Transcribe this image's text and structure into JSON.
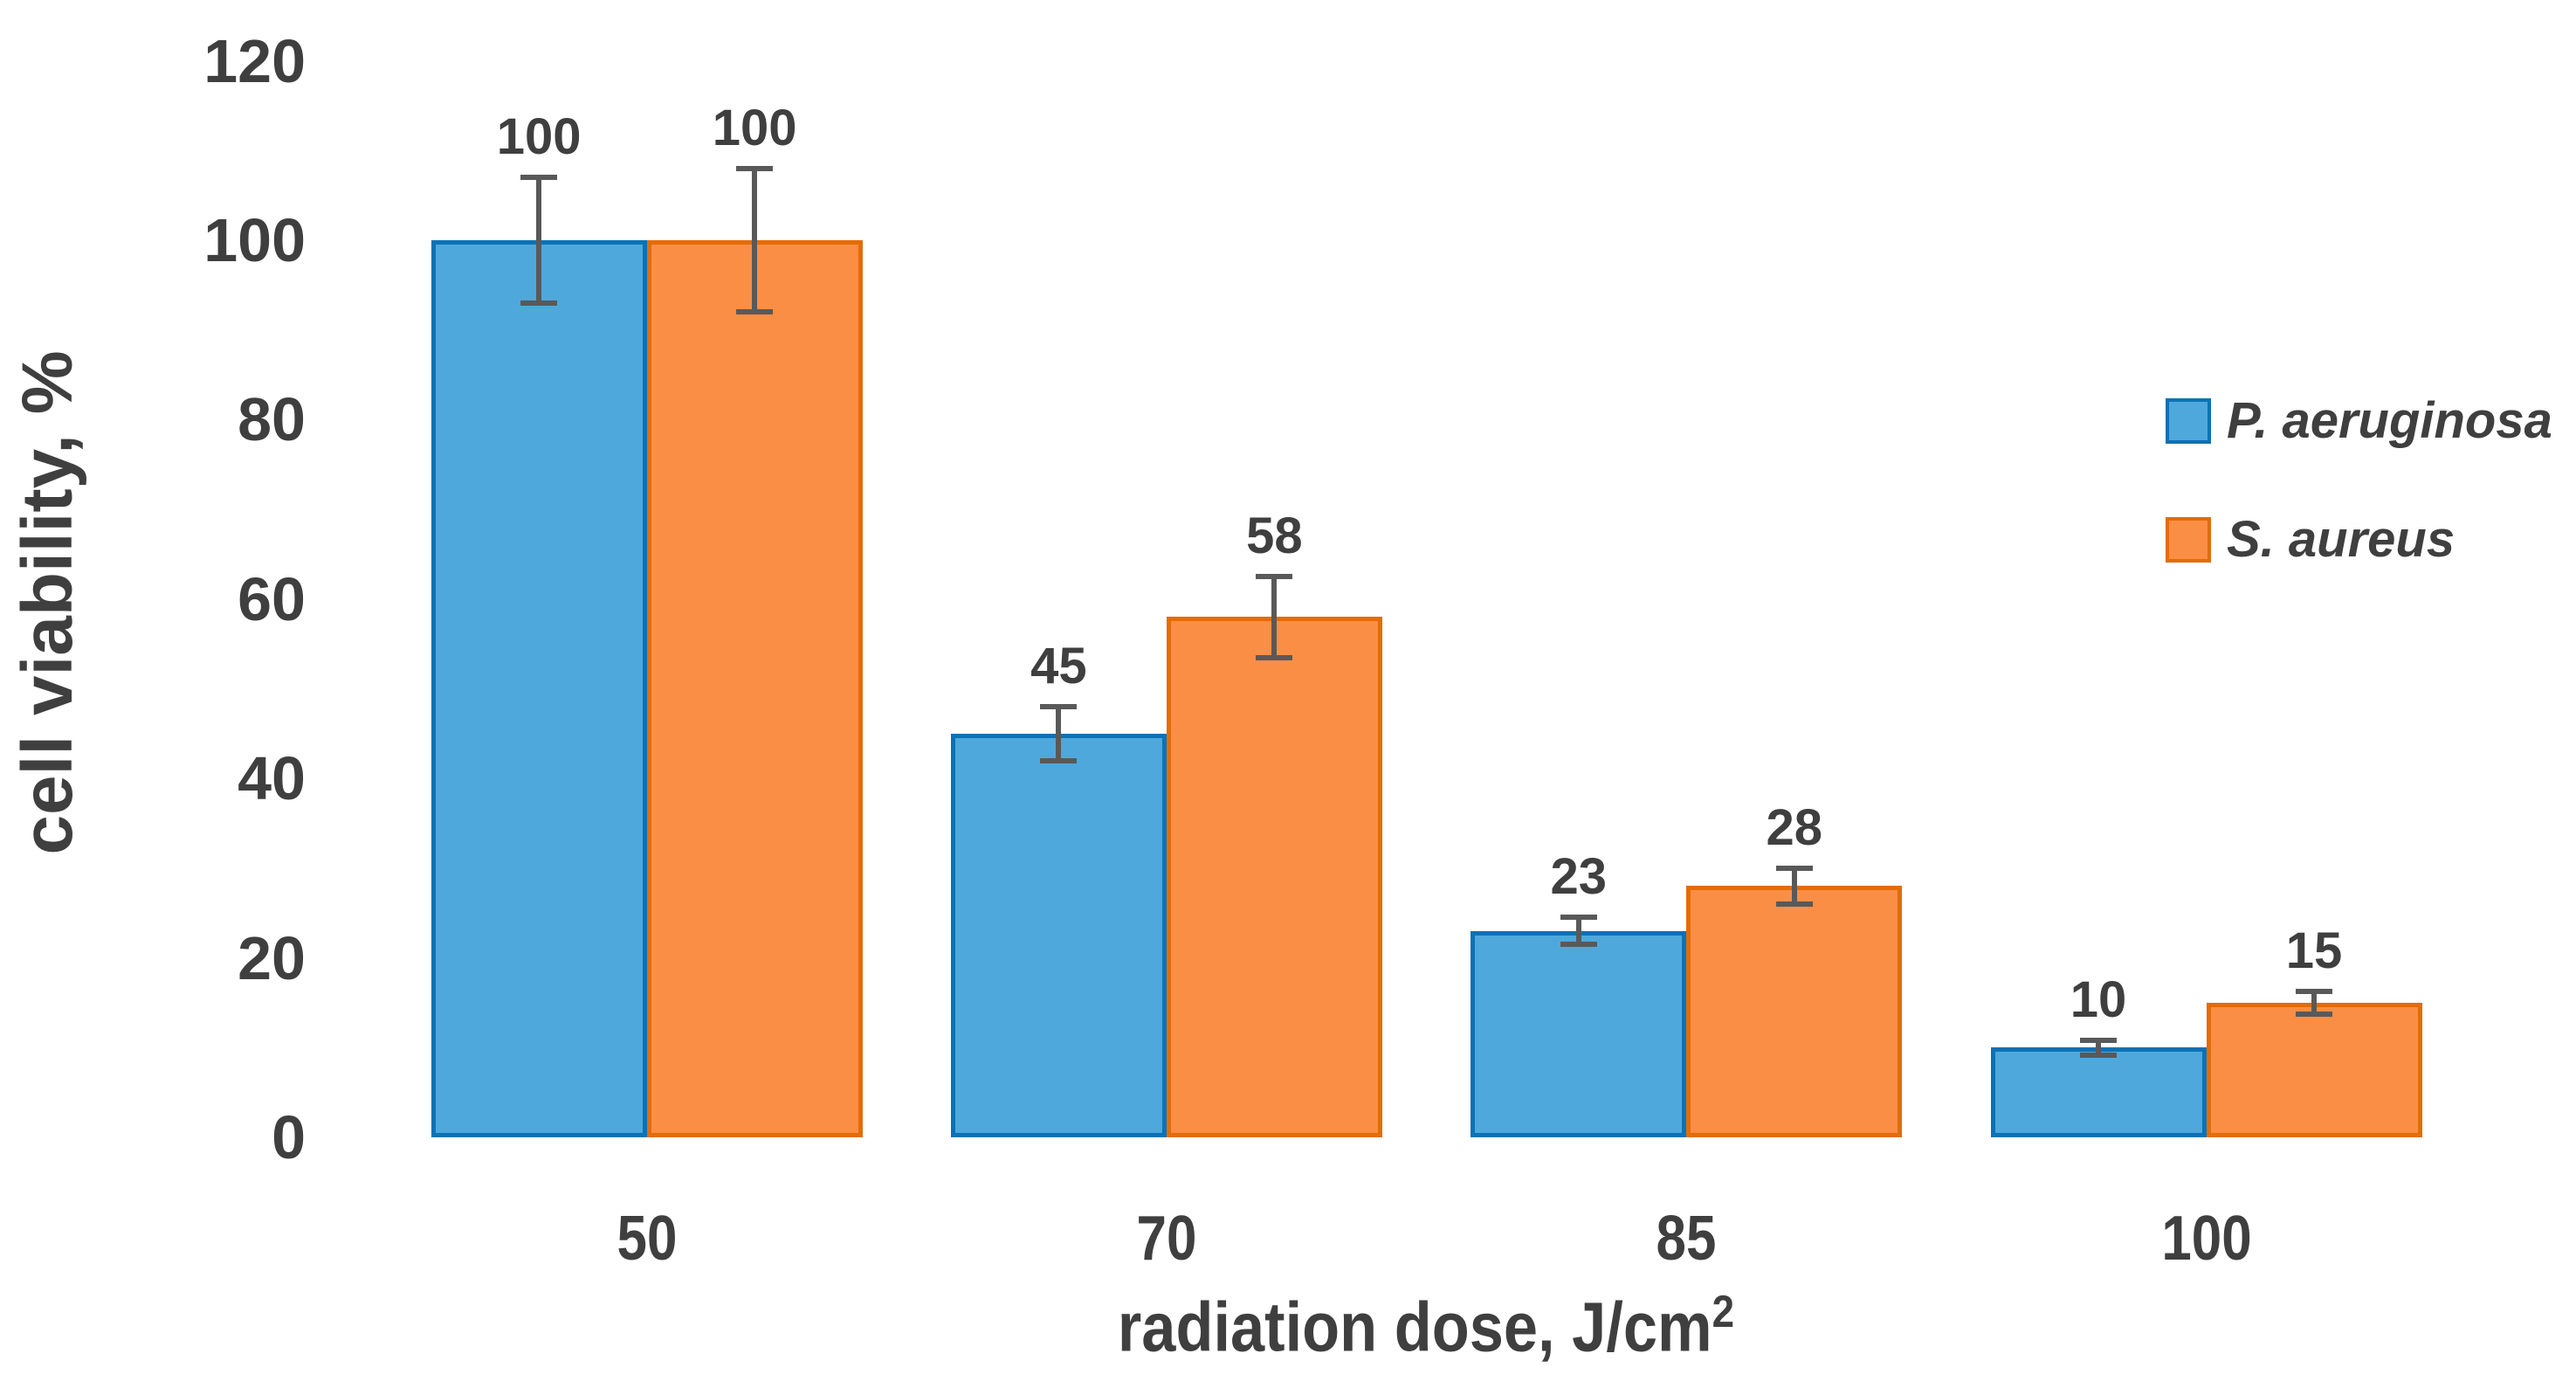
{
  "chart_data": {
    "type": "bar",
    "title": "",
    "categories": [
      "50",
      "70",
      "85",
      "100"
    ],
    "series": [
      {
        "name": "P. aeruginosa",
        "fill_color": "#4fa8dc",
        "border_color": "#0b72b5",
        "values": [
          100,
          45,
          23,
          10
        ],
        "errors": [
          7,
          3,
          1.5,
          0.8
        ],
        "labels": [
          "100",
          "45",
          "23",
          "10"
        ]
      },
      {
        "name": "S. aureus",
        "fill_color": "#fb8e45",
        "border_color": "#e36c09",
        "values": [
          100,
          58,
          28,
          15
        ],
        "errors": [
          8,
          4.5,
          2,
          1.3
        ],
        "labels": [
          "100",
          "58",
          "28",
          "15"
        ]
      }
    ],
    "xlabel": "radiation dose, J/cm",
    "xlabel_superscript": "2",
    "ylabel": "cell viability, %",
    "y_ticks": [
      0,
      20,
      40,
      60,
      80,
      100,
      120
    ],
    "y_tick_labels": [
      "0",
      "20",
      "40",
      "60",
      "80",
      "100",
      "120"
    ],
    "ylim": [
      0,
      120
    ],
    "grid": false,
    "legend_position": "right",
    "error_bar_color": "#595959",
    "text_color": "#3f3f3f",
    "background_color": "#ffffff"
  }
}
